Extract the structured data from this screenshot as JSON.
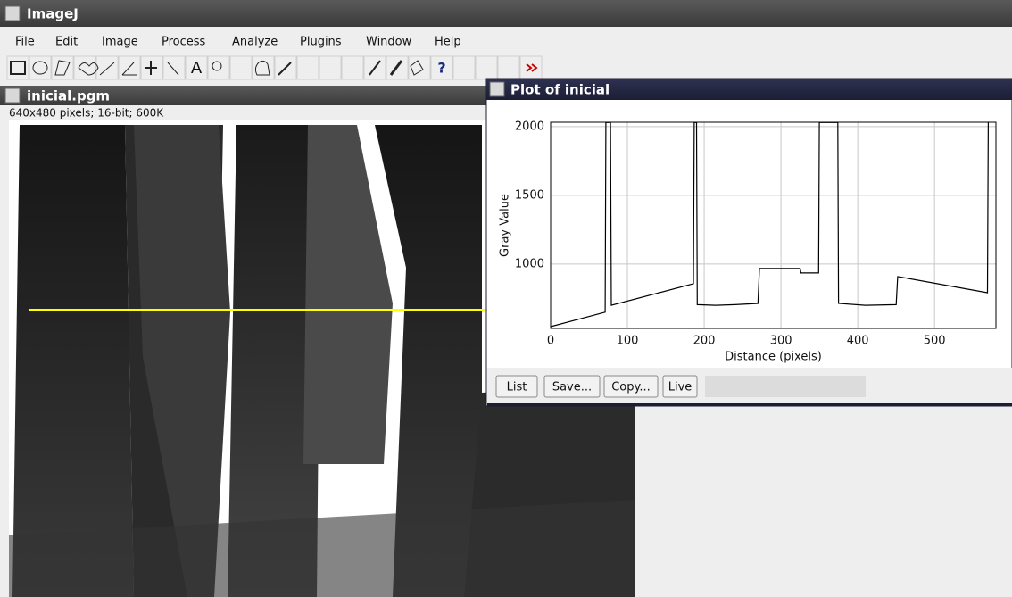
{
  "window_title": "ImageJ",
  "menu": [
    "File",
    "Edit",
    "Image",
    "Process",
    "Analyze",
    "Plugins",
    "Window",
    "Help"
  ],
  "toolbar_glyphs": [
    "A",
    "?"
  ],
  "image_window": {
    "title": "inicial.pgm",
    "info": "640x480 pixels; 16-bit; 600K"
  },
  "plot_window": {
    "title": "Plot of inicial",
    "buttons": [
      "List",
      "Save...",
      "Copy...",
      "Live"
    ],
    "chart_data": {
      "type": "line",
      "xlabel": "Distance (pixels)",
      "ylabel": "Gray Value",
      "x": [
        0,
        71,
        72,
        78,
        79,
        186,
        187,
        190,
        191,
        215,
        240,
        270,
        272,
        325,
        326,
        349,
        350,
        374,
        375,
        410,
        450,
        452,
        569,
        570
      ],
      "values": [
        545,
        650,
        2030,
        2030,
        700,
        857,
        2030,
        2030,
        705,
        700,
        705,
        714,
        968,
        968,
        935,
        935,
        2030,
        2030,
        714,
        700,
        705,
        909,
        792,
        2030
      ],
      "color": "#000000",
      "xlim": [
        0,
        580
      ],
      "ylim": [
        532,
        2032
      ],
      "xticks": [
        0,
        100,
        200,
        300,
        400,
        500
      ],
      "yticks": [
        1000,
        1500,
        2000
      ],
      "grid": true
    }
  }
}
